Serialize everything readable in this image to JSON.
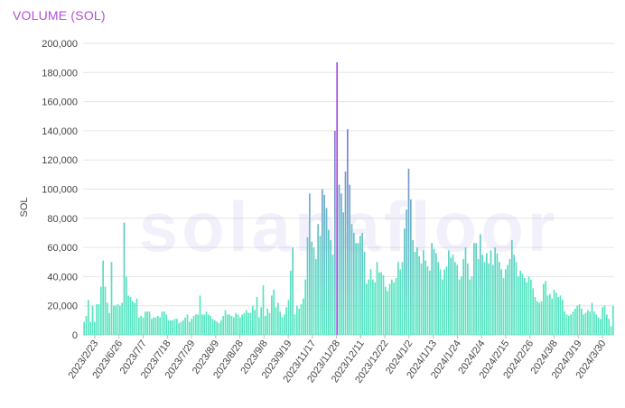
{
  "chart_data": {
    "type": "bar",
    "title": "VOLUME (SOL)",
    "ylabel": "SOL",
    "xlabel": "",
    "watermark": "solanafloor",
    "ylim": [
      0,
      200000
    ],
    "yticks": [
      0,
      20000,
      40000,
      60000,
      80000,
      100000,
      120000,
      140000,
      160000,
      180000,
      200000
    ],
    "ytick_labels": [
      "0",
      "20,000",
      "40,000",
      "60,000",
      "80,000",
      "100,000",
      "120,000",
      "140,000",
      "160,000",
      "180,000",
      "200,000"
    ],
    "xtick_labels": [
      "2023/2/23",
      "2023/6/26",
      "2023/7/7",
      "2023/7/18",
      "2023/7/29",
      "2023/8/9",
      "2023/8/28",
      "2023/9/8",
      "2023/9/19",
      "2023/11/17",
      "2023/11/28",
      "2023/12/11",
      "2023/12/22",
      "2024/1/2",
      "2024/1/13",
      "2024/1/24",
      "2024/2/4",
      "2024/2/15",
      "2024/2/26",
      "2024/3/8",
      "2024/3/19",
      "2024/3/30"
    ],
    "grid": true,
    "colors": {
      "bar_low": "#55e6c1",
      "bar_high": "#8a6ad8",
      "peak": "#a94ee0",
      "grid": "#e6e6e6",
      "title": "#b44fd6"
    },
    "values": [
      9000,
      13000,
      24000,
      9000,
      20000,
      9000,
      21000,
      21000,
      33000,
      51000,
      33000,
      22000,
      15000,
      50000,
      20000,
      20000,
      21000,
      20000,
      22000,
      77000,
      40000,
      27000,
      26000,
      23000,
      22000,
      25000,
      12000,
      13000,
      12000,
      16000,
      16000,
      16000,
      11000,
      12000,
      12000,
      13000,
      12000,
      16000,
      16000,
      14000,
      10000,
      10000,
      10000,
      11000,
      11000,
      8000,
      9000,
      10000,
      12000,
      14000,
      9000,
      11000,
      13000,
      14000,
      14000,
      27000,
      14000,
      14000,
      16000,
      14000,
      13000,
      11000,
      10000,
      9000,
      8000,
      10000,
      13000,
      17000,
      14000,
      14000,
      13000,
      12000,
      15000,
      14000,
      12000,
      14000,
      15000,
      17000,
      15000,
      15000,
      20000,
      17000,
      26000,
      12000,
      19000,
      34000,
      13000,
      18000,
      15000,
      27000,
      31000,
      19000,
      22000,
      16000,
      12000,
      14000,
      19000,
      24000,
      44000,
      60000,
      14000,
      20000,
      18000,
      21000,
      25000,
      38000,
      67000,
      97000,
      64000,
      60000,
      52000,
      76000,
      68000,
      100000,
      96000,
      87000,
      72000,
      65000,
      55000,
      140000,
      187000,
      103000,
      97000,
      84000,
      112000,
      141000,
      103000,
      76000,
      70000,
      63000,
      63000,
      68000,
      70000,
      57000,
      35000,
      38000,
      45000,
      38000,
      36000,
      50000,
      43000,
      43000,
      41000,
      33000,
      30000,
      35000,
      38000,
      36000,
      39000,
      50000,
      45000,
      50000,
      73000,
      86000,
      114000,
      93000,
      65000,
      57000,
      60000,
      54000,
      49000,
      58000,
      51000,
      47000,
      44000,
      63000,
      59000,
      56000,
      50000,
      45000,
      38000,
      45000,
      47000,
      58000,
      53000,
      55000,
      50000,
      48000,
      38000,
      40000,
      52000,
      60000,
      49000,
      38000,
      40000,
      63000,
      63000,
      52000,
      69000,
      55000,
      50000,
      56000,
      49000,
      58000,
      48000,
      60000,
      56000,
      50000,
      45000,
      39000,
      45000,
      48000,
      52000,
      65000,
      55000,
      50000,
      40000,
      44000,
      42000,
      39000,
      36000,
      40000,
      38000,
      32000,
      26000,
      23000,
      22000,
      23000,
      35000,
      37000,
      27000,
      28000,
      25000,
      31000,
      29000,
      26000,
      27000,
      24000,
      16000,
      14000,
      13000,
      14000,
      16000,
      18000,
      20000,
      21000,
      18000,
      14000,
      15000,
      17000,
      16000,
      22000,
      16000,
      14000,
      12000,
      11000,
      19000,
      20000,
      14000,
      11000,
      6000,
      20000
    ]
  }
}
